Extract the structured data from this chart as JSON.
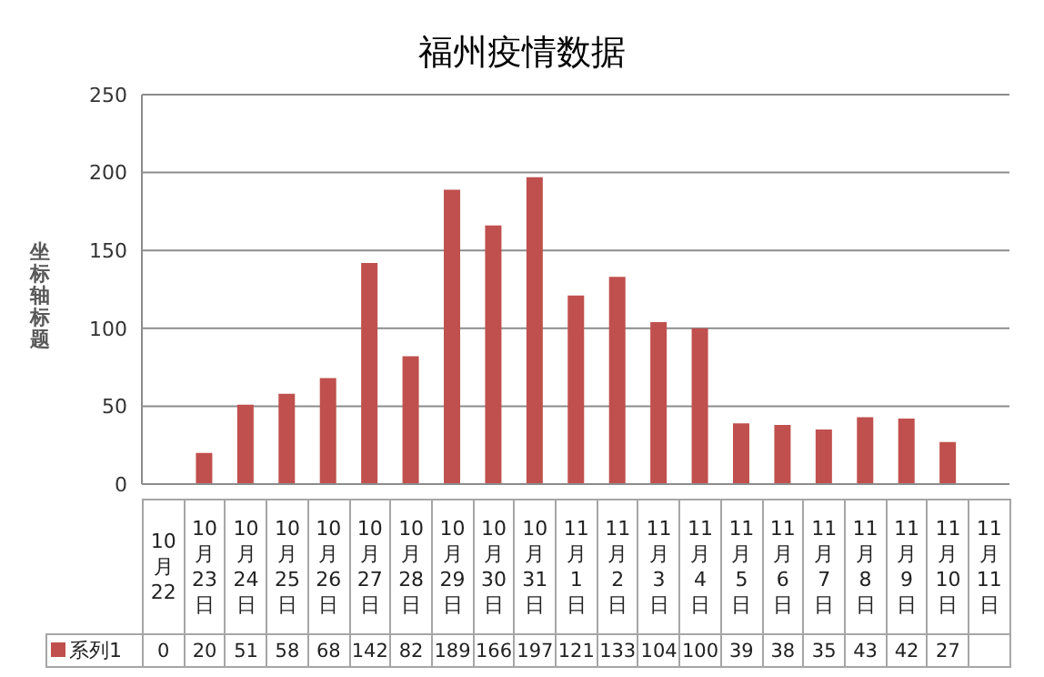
{
  "chart_data": {
    "type": "bar",
    "title": "福州疫情数据",
    "ylabel": "坐标轴标题",
    "categories": [
      "10月22",
      "10月23日",
      "10月24日",
      "10月25日",
      "10月26日",
      "10月27日",
      "10月28日",
      "10月29日",
      "10月30日",
      "10月31日",
      "11月1日",
      "11月2日",
      "11月3日",
      "11月4日",
      "11月5日",
      "11月6日",
      "11月7日",
      "11月8日",
      "11月9日",
      "11月10日",
      "11月11日"
    ],
    "series": [
      {
        "name": "系列1",
        "color": "#c0504d",
        "values": [
          0,
          20,
          51,
          58,
          68,
          142,
          82,
          189,
          166,
          197,
          121,
          133,
          104,
          100,
          39,
          38,
          35,
          43,
          42,
          27,
          null
        ]
      }
    ],
    "ylim": [
      0,
      250
    ],
    "yticks": [
      0,
      50,
      100,
      150,
      200,
      250
    ],
    "grid": "y",
    "legend": "bottom left",
    "data_labels": true
  }
}
